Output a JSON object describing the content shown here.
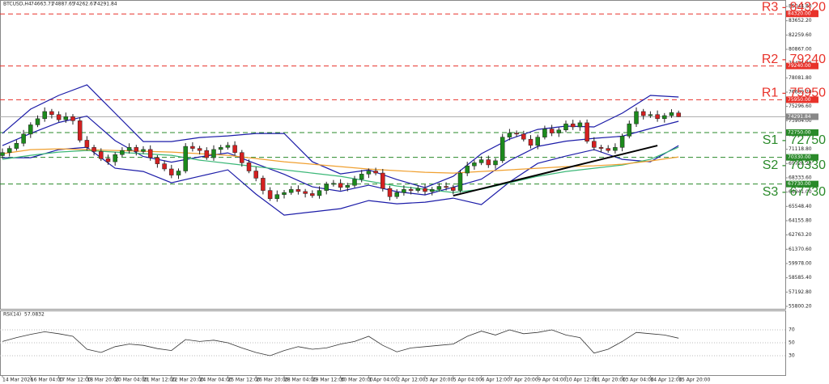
{
  "chart_data": {
    "type": "candlestick",
    "symbol": "BTCUSD,H4",
    "up_color": "#1c8a1c",
    "down_color": "#d42020",
    "candles": {
      "open": [
        70500,
        70800,
        71200,
        71700,
        72600,
        73500,
        74100,
        74800,
        74500,
        74000,
        74300,
        73900,
        72000,
        71300,
        70900,
        70200,
        69900,
        70600,
        71000,
        71300,
        70900,
        71100,
        70300,
        69700,
        69200,
        68600,
        69000,
        71400,
        71200,
        71000,
        70300,
        71100,
        71300,
        71500,
        70800,
        69800,
        69000,
        68300,
        67100,
        66300,
        66700,
        66900,
        67200,
        67000,
        66800,
        66600,
        67100,
        67700,
        67800,
        67400,
        67600,
        68200,
        68700,
        69000,
        68800,
        67300,
        66500,
        66900,
        67200,
        67100,
        67300,
        67000,
        67200,
        67500,
        67400,
        67100,
        68800,
        69500,
        69800,
        70100,
        69600,
        70000,
        72300,
        72700,
        72600,
        72100,
        71500,
        72300,
        73100,
        72700,
        73000,
        73600,
        73300,
        73700,
        71900,
        71300,
        71200,
        71000,
        71300,
        72400,
        73600,
        74800,
        74400,
        74500,
        74100,
        74400,
        74663.71
      ],
      "high": [
        71200,
        71450,
        72020,
        73000,
        73750,
        74420,
        75200,
        75050,
        74820,
        74700,
        74550,
        74220,
        72400,
        71550,
        71220,
        70600,
        70850,
        71320,
        71700,
        71550,
        71420,
        71500,
        70550,
        70020,
        69600,
        69250,
        71720,
        71800,
        71450,
        71320,
        71500,
        71550,
        71820,
        71900,
        71050,
        70120,
        69400,
        68550,
        67420,
        67100,
        67150,
        67520,
        67600,
        67250,
        67120,
        67500,
        67950,
        68120,
        68200,
        67850,
        68520,
        69100,
        69250,
        69320,
        69200,
        67550,
        67220,
        67600,
        67450,
        67620,
        67700,
        67450,
        67820,
        67900,
        67650,
        69120,
        69900,
        70050,
        70420,
        70500,
        70250,
        72620,
        73100,
        72950,
        72920,
        72500,
        72550,
        73420,
        73500,
        73250,
        73920,
        74000,
        73950,
        74020,
        72300,
        71550,
        71520,
        71700,
        72650,
        73920,
        75200,
        75050,
        74820,
        74900,
        74650,
        75020,
        74887.65
      ],
      "low": [
        70200,
        70420,
        70980,
        71400,
        72220,
        73280,
        73800,
        74120,
        73780,
        73700,
        73520,
        71780,
        71000,
        70520,
        69980,
        69600,
        69520,
        70380,
        70700,
        70520,
        70680,
        70000,
        69320,
        68980,
        68300,
        68220,
        68780,
        70900,
        70620,
        70080,
        70000,
        70720,
        71080,
        70500,
        69420,
        68780,
        68000,
        66720,
        66080,
        66000,
        66320,
        66680,
        66700,
        66420,
        66380,
        66300,
        66720,
        67480,
        67100,
        67020,
        67380,
        67900,
        68320,
        68580,
        67000,
        66120,
        66280,
        66600,
        66720,
        66880,
        66700,
        66620,
        66980,
        67100,
        66720,
        66880,
        68500,
        69120,
        69580,
        69300,
        69220,
        69780,
        72000,
        72320,
        71880,
        71200,
        71120,
        72080,
        72400,
        72320,
        72780,
        73000,
        72920,
        71680,
        71000,
        70820,
        70780,
        70700,
        70920,
        72180,
        73300,
        74020,
        74180,
        73800,
        73720,
        74180,
        74262.67
      ],
      "close": [
        70800,
        71200,
        71700,
        72600,
        73500,
        74100,
        74800,
        74500,
        74000,
        74300,
        73900,
        72000,
        71300,
        70900,
        70200,
        69900,
        70600,
        71000,
        71300,
        70900,
        71100,
        70300,
        69700,
        69200,
        68600,
        69000,
        71400,
        71200,
        71000,
        70300,
        71100,
        71300,
        71500,
        70800,
        69800,
        69000,
        68300,
        67100,
        66300,
        66700,
        66900,
        67200,
        67000,
        66800,
        66600,
        67100,
        67700,
        67800,
        67400,
        67600,
        68200,
        68700,
        69000,
        68800,
        67300,
        66500,
        66900,
        67200,
        67100,
        67300,
        67000,
        67200,
        67500,
        67400,
        67100,
        68800,
        69500,
        69800,
        70100,
        69600,
        70000,
        72300,
        72700,
        72600,
        72100,
        71500,
        72300,
        73100,
        72700,
        73000,
        73600,
        73300,
        73700,
        71900,
        71300,
        71200,
        71000,
        71300,
        72400,
        73600,
        74800,
        74400,
        74500,
        74100,
        74400,
        74700,
        74291.84
      ]
    },
    "x_labels": [
      "14 Mar 2026",
      "16 Mar 04:00",
      "17 Mar 12:00",
      "18 Mar 20:00",
      "20 Mar 04:00",
      "21 Mar 12:00",
      "22 Mar 20:00",
      "24 Mar 04:00",
      "25 Mar 12:00",
      "26 Mar 20:00",
      "28 Mar 04:00",
      "29 Mar 12:00",
      "30 Mar 20:00",
      "1 Apr 04:00",
      "2 Apr 12:00",
      "3 Apr 20:00",
      "5 Apr 04:00",
      "6 Apr 12:00",
      "7 Apr 20:00",
      "9 Apr 04:00",
      "10 Apr 12:00",
      "11 Apr 20:00",
      "13 Apr 04:00",
      "14 Apr 12:00",
      "15 Apr 20:00"
    ],
    "ylim": [
      55560,
      85675
    ],
    "yticks": [
      {
        "value": 85044.8,
        "label": "85044.80"
      },
      {
        "value": 83652.2,
        "label": "83652.20"
      },
      {
        "value": 82259.6,
        "label": "82259.60"
      },
      {
        "value": 80867,
        "label": "80867.00"
      },
      {
        "value": 79474.4,
        "label": "79474.40"
      },
      {
        "value": 78081.8,
        "label": "78081.80"
      },
      {
        "value": 76689.2,
        "label": "76689.20"
      },
      {
        "value": 75296.6,
        "label": "75296.60"
      },
      {
        "value": 73904,
        "label": "73904.00"
      },
      {
        "value": 72511.4,
        "label": "72511.40"
      },
      {
        "value": 71118.8,
        "label": "71118.80"
      },
      {
        "value": 69726.2,
        "label": "69726.20"
      },
      {
        "value": 68333.6,
        "label": "68333.60"
      },
      {
        "value": 66941,
        "label": "66941.00"
      },
      {
        "value": 65548.4,
        "label": "65548.40"
      },
      {
        "value": 64155.8,
        "label": "64155.80"
      },
      {
        "value": 62763.2,
        "label": "62763.20"
      },
      {
        "value": 61370.6,
        "label": "61370.60"
      },
      {
        "value": 59978,
        "label": "59978.00"
      },
      {
        "value": 58585.4,
        "label": "58585.40"
      },
      {
        "value": 57192.8,
        "label": "57192.80"
      },
      {
        "value": 55800.2,
        "label": "55800.20"
      }
    ],
    "lines": [
      {
        "color": "#1c1ca8",
        "values": [
          72663,
          75029,
          76370,
          77395,
          74635,
          71874,
          71874,
          72269,
          72426,
          72663,
          72663,
          69903,
          68720,
          69114,
          68168,
          67379,
          68483,
          70692,
          72111,
          73057,
          73373,
          73294,
          74635,
          76370,
          76212
        ]
      },
      {
        "color": "#1c1ca8",
        "values": [
          71480,
          72663,
          73728,
          74358,
          71954,
          70415,
          69863,
          70376,
          70770,
          69706,
          68681,
          67458,
          67025,
          67616,
          66985,
          66670,
          67419,
          68208,
          70021,
          71401,
          71914,
          72190,
          72388,
          73137,
          73846
        ]
      },
      {
        "color": "#1c1ca8",
        "values": [
          70297,
          70297,
          71086,
          71322,
          69272,
          68956,
          67852,
          68483,
          69114,
          66749,
          64699,
          65013,
          65329,
          66118,
          65802,
          65960,
          66354,
          65723,
          67931,
          69745,
          70455,
          71086,
          70140,
          69903,
          71480
        ]
      },
      {
        "color": "#3cb878",
        "values": [
          70140,
          70534,
          70850,
          71007,
          70850,
          70692,
          70534,
          70061,
          69745,
          69430,
          69114,
          68799,
          68483,
          68010,
          67537,
          67222,
          66906,
          67222,
          67852,
          68483,
          68956,
          69272,
          69587,
          70140,
          71322
        ]
      },
      {
        "color": "#f0a030",
        "values": [
          70692,
          71086,
          71165,
          71086,
          71007,
          70928,
          70850,
          70692,
          70534,
          70219,
          69903,
          69666,
          69430,
          69193,
          69035,
          68877,
          68799,
          68956,
          69114,
          69272,
          69430,
          69508,
          69666,
          69982,
          70376
        ]
      }
    ],
    "trendline": {
      "x": [
        64,
        93
      ],
      "values": [
        66591,
        71480
      ],
      "color": "#000000"
    },
    "levels": [
      {
        "label": "R3 - 84320",
        "value": 84320,
        "axis_label": "84320.00",
        "color": "#e8322a"
      },
      {
        "label": "R2 - 79240",
        "value": 79240,
        "axis_label": "79240.00",
        "color": "#e8322a"
      },
      {
        "label": "R1 - 75950",
        "value": 75950,
        "axis_label": "75950.00",
        "color": "#e8322a"
      },
      {
        "label": "S1 - 72750",
        "value": 72750,
        "axis_label": "72750.00",
        "color": "#2a8a2a"
      },
      {
        "label": "S2 - 70330",
        "value": 70330,
        "axis_label": "70330.00",
        "color": "#2a8a2a"
      },
      {
        "label": "S3 - 67730",
        "value": 67730,
        "axis_label": "67730.00",
        "color": "#2a8a2a"
      }
    ],
    "rsi": {
      "title": "RSI(14)",
      "color": "#333333",
      "ylim": [
        0,
        100
      ],
      "yticks": [
        30,
        50,
        70
      ],
      "values": [
        52,
        58,
        63,
        67,
        64,
        60,
        40,
        35,
        44,
        48,
        46,
        41,
        38,
        55,
        52,
        54,
        50,
        42,
        35,
        30,
        38,
        44,
        40,
        42,
        48,
        52,
        60,
        46,
        36,
        42,
        44,
        46,
        48,
        60,
        68,
        62,
        70,
        64,
        66,
        70,
        62,
        58,
        34,
        40,
        52,
        66,
        64,
        62,
        57.0832
      ]
    }
  }
}
